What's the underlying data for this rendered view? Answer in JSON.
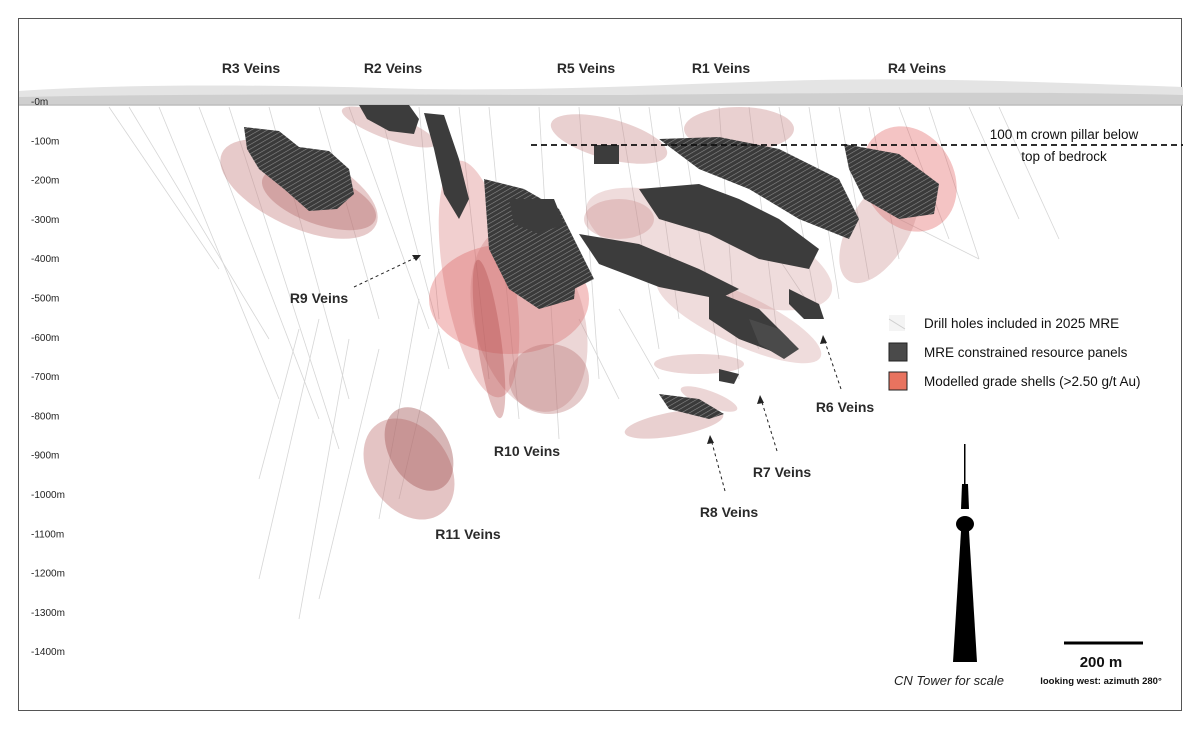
{
  "vein_labels_top": [
    "R3 Veins",
    "R2 Veins",
    "R5 Veins",
    "R1 Veins",
    "R4 Veins"
  ],
  "vein_labels_lower": [
    "R9 Veins",
    "R10 Veins",
    "R11 Veins",
    "R8 Veins",
    "R7 Veins",
    "R6 Veins"
  ],
  "depth_labels": [
    "-0m",
    "-100m",
    "-200m",
    "-300m",
    "-400m",
    "-500m",
    "-600m",
    "-700m",
    "-800m",
    "-900m",
    "-1000m",
    "-1100m",
    "-1200m",
    "-1300m",
    "-1400m"
  ],
  "crown_pillar": {
    "line1": "100 m crown pillar below",
    "line2": "top of bedrock"
  },
  "legend": {
    "items": [
      {
        "label": "Drill holes included in 2025 MRE",
        "color": "#d9d9d9"
      },
      {
        "label": "MRE constrained resource panels",
        "color": "#4a4a4a"
      },
      {
        "label": "Modelled grade shells (>2.50 g/t Au)",
        "color": "#e8735f"
      }
    ]
  },
  "scale_bar": {
    "label": "200 m"
  },
  "tower_caption": "CN Tower for scale",
  "orientation_note": "looking west: azimuth 280°",
  "colors": {
    "shell": "#c98a8a",
    "shell_bright": "#e05555",
    "panel": "#3c3c3c",
    "drill": "#cfcfcf"
  }
}
